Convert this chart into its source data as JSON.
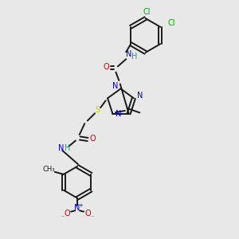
{
  "background_color": "#e8e8e8",
  "bond_color": "#1a1a1a",
  "n_color": "#0000cc",
  "o_color": "#cc0000",
  "s_color": "#cccc00",
  "cl_color": "#00aa00",
  "h_color": "#448888",
  "figsize": [
    3.0,
    3.0
  ],
  "dpi": 100,
  "xlim": [
    0,
    10
  ],
  "ylim": [
    0,
    10
  ]
}
